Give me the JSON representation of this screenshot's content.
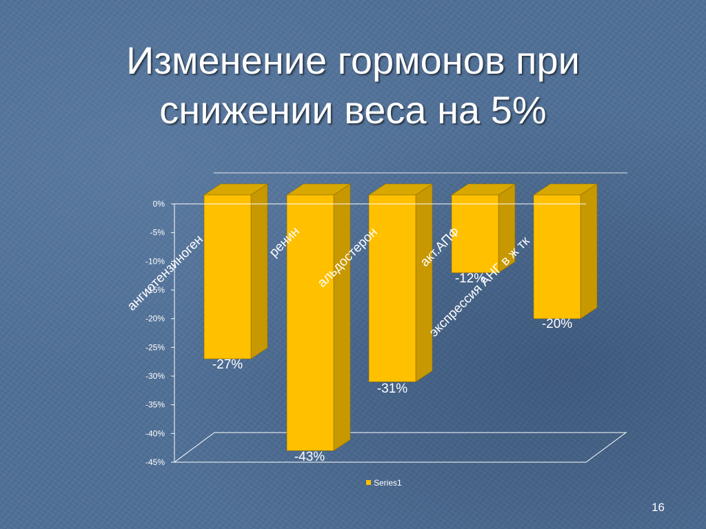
{
  "slide": {
    "title_line1": "Изменение гормонов при",
    "title_line2": "снижении веса на 5%",
    "page_number": "16"
  },
  "colors": {
    "bar_front": "#ffc000",
    "bar_side": "#c79800",
    "bar_top": "#d8a800",
    "axis": "#ffffff",
    "text": "#ffffff"
  },
  "chart_data": {
    "type": "bar",
    "categories": [
      "ангиотензиноген",
      "ренин",
      "альдостерон",
      "акт.АПФ",
      "экспрессия АНГ в ж тк"
    ],
    "series": [
      {
        "name": "Series1",
        "values": [
          -27,
          -43,
          -31,
          -12,
          -20
        ]
      }
    ],
    "data_labels": [
      "-27%",
      "-43%",
      "-31%",
      "-12%",
      "-20%"
    ],
    "yticks": [
      "0%",
      "-5%",
      "-10%",
      "-15%",
      "-20%",
      "-25%",
      "-30%",
      "-35%",
      "-40%",
      "-45%"
    ],
    "ylim": [
      -45,
      0
    ],
    "legend": "bottom",
    "three_d": true
  }
}
